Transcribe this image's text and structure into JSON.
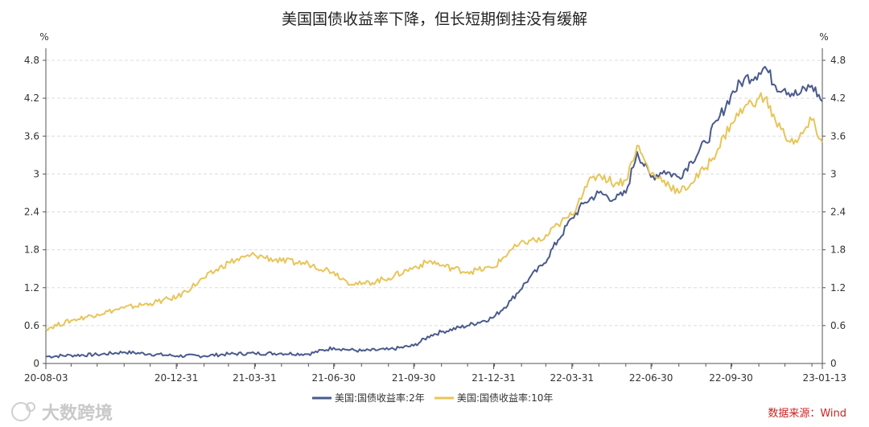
{
  "chart_data": {
    "type": "line",
    "title": "美国国债收益率下降，但长短期倒挂没有缓解",
    "y_unit_left": "%",
    "y_unit_right": "%",
    "ylim": [
      0,
      4.8
    ],
    "yticks": [
      "0",
      "0.6",
      "1.2",
      "1.8",
      "2.4",
      "3",
      "3.6",
      "4.2",
      "4.8"
    ],
    "x_tick_labels": [
      "20-08-03",
      "20-12-31",
      "21-03-31",
      "21-06-30",
      "21-09-30",
      "21-12-31",
      "22-03-31",
      "22-06-30",
      "22-09-30",
      "23-01-13"
    ],
    "grid": true,
    "legend_position": "bottom",
    "series": [
      {
        "name": "美国:国债收益率:2年",
        "color": "#4a5a8c",
        "dates": [
          "2020-08-03",
          "2020-09-01",
          "2020-10-01",
          "2020-11-01",
          "2020-12-01",
          "2021-01-01",
          "2021-02-01",
          "2021-03-01",
          "2021-03-31",
          "2021-05-01",
          "2021-06-01",
          "2021-06-30",
          "2021-07-15",
          "2021-08-01",
          "2021-09-01",
          "2021-09-30",
          "2021-10-20",
          "2021-11-01",
          "2021-12-01",
          "2021-12-31",
          "2022-01-20",
          "2022-02-10",
          "2022-02-25",
          "2022-03-15",
          "2022-03-31",
          "2022-04-15",
          "2022-05-01",
          "2022-05-20",
          "2022-06-01",
          "2022-06-14",
          "2022-06-30",
          "2022-07-15",
          "2022-08-01",
          "2022-08-15",
          "2022-09-01",
          "2022-09-15",
          "2022-09-30",
          "2022-10-15",
          "2022-11-01",
          "2022-11-08",
          "2022-11-20",
          "2022-12-01",
          "2022-12-15",
          "2023-01-01",
          "2023-01-13"
        ],
        "values": [
          0.11,
          0.13,
          0.14,
          0.18,
          0.15,
          0.12,
          0.12,
          0.15,
          0.16,
          0.16,
          0.15,
          0.25,
          0.22,
          0.2,
          0.22,
          0.28,
          0.45,
          0.5,
          0.6,
          0.73,
          1.0,
          1.35,
          1.55,
          1.95,
          2.3,
          2.55,
          2.7,
          2.6,
          2.7,
          3.35,
          2.95,
          3.05,
          2.95,
          3.2,
          3.5,
          3.85,
          4.25,
          4.5,
          4.6,
          4.7,
          4.4,
          4.35,
          4.25,
          4.4,
          4.15
        ]
      },
      {
        "name": "美国:国债收益率:10年",
        "color": "#e8c55a",
        "dates": [
          "2020-08-03",
          "2020-09-01",
          "2020-10-01",
          "2020-11-01",
          "2020-12-01",
          "2021-01-01",
          "2021-02-01",
          "2021-03-01",
          "2021-03-31",
          "2021-05-01",
          "2021-06-01",
          "2021-06-30",
          "2021-07-15",
          "2021-08-01",
          "2021-09-01",
          "2021-09-30",
          "2021-10-20",
          "2021-11-01",
          "2021-12-01",
          "2021-12-31",
          "2022-01-20",
          "2022-02-10",
          "2022-02-25",
          "2022-03-15",
          "2022-03-31",
          "2022-04-15",
          "2022-05-01",
          "2022-05-20",
          "2022-06-01",
          "2022-06-14",
          "2022-06-30",
          "2022-07-15",
          "2022-08-01",
          "2022-08-15",
          "2022-09-01",
          "2022-09-15",
          "2022-09-30",
          "2022-10-15",
          "2022-11-01",
          "2022-11-08",
          "2022-11-20",
          "2022-12-01",
          "2022-12-15",
          "2023-01-01",
          "2023-01-13"
        ],
        "values": [
          0.55,
          0.68,
          0.78,
          0.88,
          0.95,
          1.05,
          1.35,
          1.6,
          1.72,
          1.62,
          1.58,
          1.45,
          1.3,
          1.25,
          1.35,
          1.52,
          1.62,
          1.55,
          1.45,
          1.52,
          1.8,
          1.95,
          1.95,
          2.2,
          2.35,
          2.8,
          3.0,
          2.85,
          2.9,
          3.45,
          3.0,
          2.9,
          2.7,
          2.85,
          3.1,
          3.4,
          3.8,
          4.05,
          4.2,
          4.2,
          3.85,
          3.6,
          3.5,
          3.85,
          3.5
        ]
      }
    ]
  },
  "source_note": "数据来源：Wind",
  "watermark": "大数跨境"
}
